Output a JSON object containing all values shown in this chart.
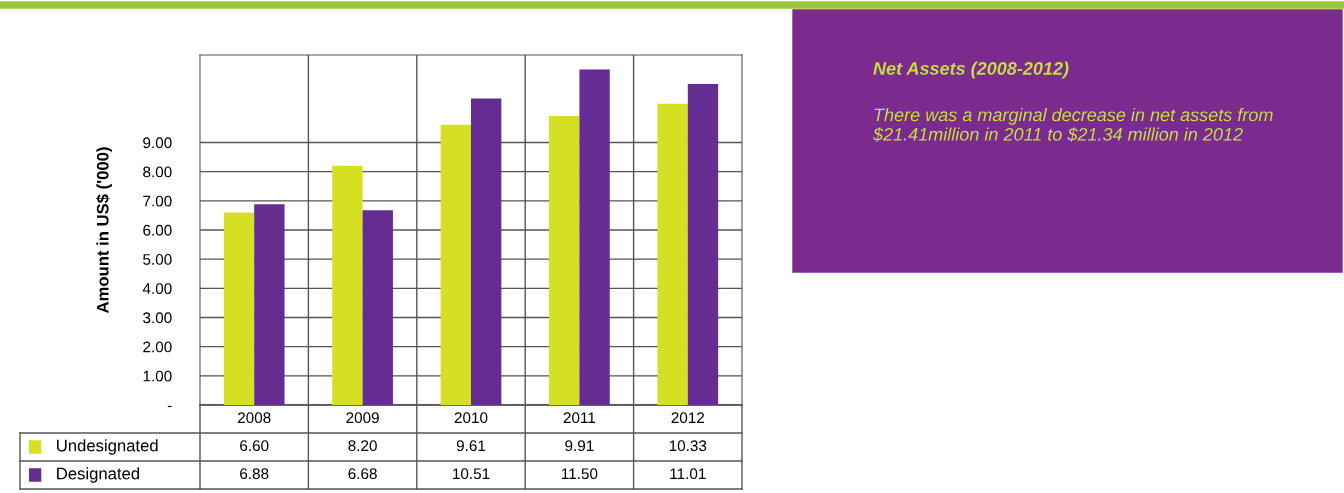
{
  "chart_data": {
    "type": "bar",
    "title": "Net Assets (2008-2012)",
    "annotations": [
      "There was a marginal decrease in net assets from $21.41million in 2011 to $21.34 million in 2012"
    ],
    "ylabel": "Amount in US$ ('000)",
    "categories": [
      "2008",
      "2009",
      "2010",
      "2011",
      "2012"
    ],
    "series": [
      {
        "name": "Undesignated",
        "color": "#d4e021",
        "values": [
          6.6,
          8.2,
          9.61,
          9.91,
          10.33
        ],
        "value_labels": [
          "6.60",
          "8.20",
          "9.61",
          "9.91",
          "10.33"
        ]
      },
      {
        "name": "Designated",
        "color": "#652d91",
        "values": [
          6.88,
          6.68,
          10.51,
          11.5,
          11.01
        ],
        "value_labels": [
          "6.88",
          "6.68",
          "10.51",
          "11.50",
          "11.01"
        ]
      }
    ],
    "ylim": [
      0,
      12
    ],
    "yticks": [
      {
        "value": 0,
        "label": "-"
      },
      {
        "value": 1,
        "label": "1.00"
      },
      {
        "value": 2,
        "label": "2.00"
      },
      {
        "value": 3,
        "label": "3.00"
      },
      {
        "value": 4,
        "label": "4.00"
      },
      {
        "value": 5,
        "label": "5.00"
      },
      {
        "value": 6,
        "label": "6.00"
      },
      {
        "value": 7,
        "label": "7.00"
      },
      {
        "value": 8,
        "label": "8.00"
      },
      {
        "value": 9,
        "label": "9.00"
      }
    ],
    "grid": "y",
    "legend": "bottom left"
  }
}
